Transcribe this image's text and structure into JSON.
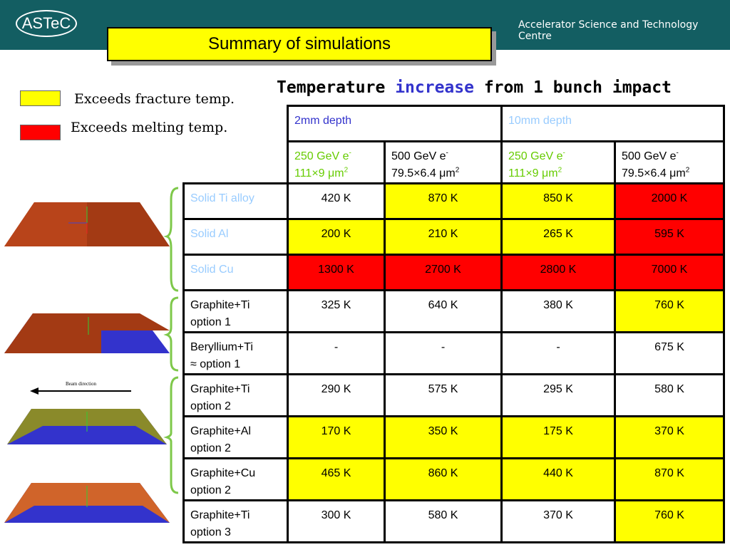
{
  "header": {
    "logo": "ASTeC",
    "org": "Accelerator Science and Technology Centre"
  },
  "title": "Summary of simulations",
  "legend": [
    {
      "text": "Exceeds fracture temp.",
      "color": "#ffff00"
    },
    {
      "text": "Exceeds melting temp.",
      "color": "#ff0000"
    }
  ],
  "heading": [
    "Temperature",
    "increase",
    "from 1 bunch impact"
  ],
  "beam_label": "Beam direction",
  "table": {
    "groups": [
      {
        "text": "2mm depth",
        "color": "#3333cc"
      },
      {
        "text": "10mm depth",
        "color": "#99ccff"
      }
    ],
    "subheaders": [
      {
        "energy": "250 GeV e",
        "charge": "-",
        "size": "111×9 μm",
        "exp": "2",
        "color": "#66cc00"
      },
      {
        "energy": "500 GeV e",
        "charge": "-",
        "size": "79.5×6.4 μm",
        "exp": "2",
        "color": "#000000"
      },
      {
        "energy": "250 GeV e",
        "charge": "-",
        "size": "111×9 μm",
        "exp": "2",
        "color": "#66cc00"
      },
      {
        "energy": "500 GeV e",
        "charge": "-",
        "size": "79.5×6.4 μm",
        "exp": "2",
        "color": "#000000"
      }
    ],
    "rows": [
      {
        "label": [
          "Solid Ti alloy"
        ],
        "label_color": "#99ccff",
        "cells": [
          {
            "text": "420 K",
            "fill": "#ffffff"
          },
          {
            "text": "870 K",
            "fill": "#ffff00"
          },
          {
            "text": "850 K",
            "fill": "#ffff00"
          },
          {
            "text": "2000 K",
            "fill": "#ff0000"
          }
        ]
      },
      {
        "label": [
          "Solid Al"
        ],
        "label_color": "#99ccff",
        "cells": [
          {
            "text": "200 K",
            "fill": "#ffff00"
          },
          {
            "text": "210 K",
            "fill": "#ffff00"
          },
          {
            "text": "265 K",
            "fill": "#ffff00"
          },
          {
            "text": "595 K",
            "fill": "#ff0000"
          }
        ]
      },
      {
        "label": [
          "Solid Cu"
        ],
        "label_color": "#99ccff",
        "cells": [
          {
            "text": "1300 K",
            "fill": "#ff0000"
          },
          {
            "text": "2700 K",
            "fill": "#ff0000"
          },
          {
            "text": "2800 K",
            "fill": "#ff0000"
          },
          {
            "text": "7000 K",
            "fill": "#ff0000"
          }
        ]
      },
      {
        "label": [
          "Graphite+Ti",
          "option 1"
        ],
        "label_color": "#000000",
        "cells": [
          {
            "text": "325 K",
            "fill": "#ffffff"
          },
          {
            "text": "640 K",
            "fill": "#ffffff"
          },
          {
            "text": "380 K",
            "fill": "#ffffff"
          },
          {
            "text": "760 K",
            "fill": "#ffff00"
          }
        ]
      },
      {
        "label": [
          "Beryllium+Ti",
          "≈ option 1"
        ],
        "label_color": "#000000",
        "cells": [
          {
            "text": "-",
            "fill": "#ffffff"
          },
          {
            "text": "-",
            "fill": "#ffffff"
          },
          {
            "text": "-",
            "fill": "#ffffff"
          },
          {
            "text": "675 K",
            "fill": "#ffffff"
          }
        ]
      },
      {
        "label": [
          "Graphite+Ti",
          "option 2"
        ],
        "label_color": "#000000",
        "cells": [
          {
            "text": "290 K",
            "fill": "#ffffff"
          },
          {
            "text": "575 K",
            "fill": "#ffffff"
          },
          {
            "text": "295 K",
            "fill": "#ffffff"
          },
          {
            "text": "580 K",
            "fill": "#ffffff"
          }
        ]
      },
      {
        "label": [
          "Graphite+Al",
          "option 2"
        ],
        "label_color": "#000000",
        "cells": [
          {
            "text": "170 K",
            "fill": "#ffff00"
          },
          {
            "text": "350 K",
            "fill": "#ffff00"
          },
          {
            "text": "175 K",
            "fill": "#ffff00"
          },
          {
            "text": "370 K",
            "fill": "#ffff00"
          }
        ]
      },
      {
        "label": [
          "Graphite+Cu",
          "option 2"
        ],
        "label_color": "#000000",
        "cells": [
          {
            "text": "465 K",
            "fill": "#ffff00"
          },
          {
            "text": "860 K",
            "fill": "#ffff00"
          },
          {
            "text": "440 K",
            "fill": "#ffff00"
          },
          {
            "text": "870 K",
            "fill": "#ffff00"
          }
        ]
      },
      {
        "label": [
          "Graphite+Ti",
          "option 3"
        ],
        "label_color": "#000000",
        "cells": [
          {
            "text": "300 K",
            "fill": "#ffffff"
          },
          {
            "text": "580 K",
            "fill": "#ffffff"
          },
          {
            "text": "370 K",
            "fill": "#ffffff"
          },
          {
            "text": "760 K",
            "fill": "#ffff00"
          }
        ]
      }
    ]
  }
}
